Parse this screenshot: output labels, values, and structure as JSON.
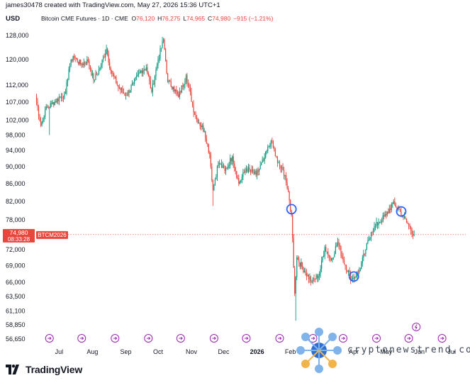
{
  "header": {
    "credit": "james30478 created with TradingView.com, May 27, 2026 15:36 UTC+1",
    "currency": "USD",
    "symbol_title": "Bitcoin CME Futures · 1D · CME",
    "ohlc": [
      {
        "key": "O",
        "value": "76,120"
      },
      {
        "key": "H",
        "value": "76,275"
      },
      {
        "key": "L",
        "value": "74,965"
      },
      {
        "key": "C",
        "value": "74,980"
      },
      {
        "key": "",
        "value": "−915 (−1.21%)"
      }
    ]
  },
  "price_tag": {
    "price": "74,980",
    "countdown": "08:33:28",
    "ticker": "BTCM2026",
    "color": "#e8453c"
  },
  "colors": {
    "up": "#089981",
    "down": "#e8453c",
    "marker": "#2962ff",
    "event": "#9c27b0"
  },
  "branding": {
    "logo_icon": "tradingview-logo-icon",
    "logo_text": "TradingView"
  },
  "watermark": {
    "icon": "cryptonewstrend-logo-icon",
    "text": "cryptonewstrend.com"
  },
  "chart_data": {
    "type": "candlestick",
    "title": "Bitcoin CME Futures · 1D · CME",
    "ylabel": "USD",
    "y_scale": "log",
    "ylim": [
      56000,
      130500
    ],
    "y_ticks": [
      "128,000",
      "120,000",
      "112,000",
      "107,000",
      "102,000",
      "98,000",
      "94,000",
      "90,000",
      "86,000",
      "82,000",
      "78,000",
      "72,000",
      "69,000",
      "66,000",
      "63,500",
      "61,100",
      "58,850",
      "56,650"
    ],
    "x_ticks": [
      "Jul",
      "Aug",
      "Sep",
      "Oct",
      "Nov",
      "Dec",
      "2026",
      "Feb",
      "Mar",
      "Apr",
      "May",
      "Jun",
      "Jul"
    ],
    "x_range": [
      "2025-06-09",
      "2026-07-14"
    ],
    "anchors": [
      {
        "date": "2025-06-09",
        "close": 109000
      },
      {
        "date": "2025-06-14",
        "close": 100500
      },
      {
        "date": "2025-06-18",
        "close": 104800
      },
      {
        "date": "2025-06-24",
        "close": 106500
      },
      {
        "date": "2025-07-01",
        "close": 108200
      },
      {
        "date": "2025-07-07",
        "close": 109500
      },
      {
        "date": "2025-07-10",
        "close": 117000
      },
      {
        "date": "2025-07-14",
        "close": 121200
      },
      {
        "date": "2025-07-21",
        "close": 118500
      },
      {
        "date": "2025-07-28",
        "close": 119600
      },
      {
        "date": "2025-08-02",
        "close": 113500
      },
      {
        "date": "2025-08-08",
        "close": 117500
      },
      {
        "date": "2025-08-14",
        "close": 123500
      },
      {
        "date": "2025-08-18",
        "close": 116500
      },
      {
        "date": "2025-08-25",
        "close": 111500
      },
      {
        "date": "2025-09-01",
        "close": 109000
      },
      {
        "date": "2025-09-08",
        "close": 112500
      },
      {
        "date": "2025-09-15",
        "close": 116500
      },
      {
        "date": "2025-09-20",
        "close": 117500
      },
      {
        "date": "2025-09-25",
        "close": 110000
      },
      {
        "date": "2025-10-01",
        "close": 120000
      },
      {
        "date": "2025-10-06",
        "close": 126500
      },
      {
        "date": "2025-10-10",
        "close": 113000
      },
      {
        "date": "2025-10-15",
        "close": 111500
      },
      {
        "date": "2025-10-20",
        "close": 108500
      },
      {
        "date": "2025-10-27",
        "close": 115000
      },
      {
        "date": "2025-11-04",
        "close": 103500
      },
      {
        "date": "2025-11-13",
        "close": 99000
      },
      {
        "date": "2025-11-18",
        "close": 93000
      },
      {
        "date": "2025-11-21",
        "close": 84500
      },
      {
        "date": "2025-11-26",
        "close": 91000
      },
      {
        "date": "2025-12-02",
        "close": 89000
      },
      {
        "date": "2025-12-09",
        "close": 92500
      },
      {
        "date": "2025-12-15",
        "close": 86000
      },
      {
        "date": "2025-12-22",
        "close": 89500
      },
      {
        "date": "2025-12-31",
        "close": 88000
      },
      {
        "date": "2026-01-07",
        "close": 91500
      },
      {
        "date": "2026-01-14",
        "close": 96500
      },
      {
        "date": "2026-01-20",
        "close": 91000
      },
      {
        "date": "2026-01-27",
        "close": 88000
      },
      {
        "date": "2026-02-02",
        "close": 79000
      },
      {
        "date": "2026-02-05",
        "close": 64000
      },
      {
        "date": "2026-02-07",
        "close": 70500
      },
      {
        "date": "2026-02-14",
        "close": 68000
      },
      {
        "date": "2026-02-21",
        "close": 66000
      },
      {
        "date": "2026-02-28",
        "close": 67500
      },
      {
        "date": "2026-03-05",
        "close": 72500
      },
      {
        "date": "2026-03-11",
        "close": 70000
      },
      {
        "date": "2026-03-17",
        "close": 73500
      },
      {
        "date": "2026-03-22",
        "close": 70000
      },
      {
        "date": "2026-03-30",
        "close": 66500
      },
      {
        "date": "2026-04-06",
        "close": 68000
      },
      {
        "date": "2026-04-12",
        "close": 72000
      },
      {
        "date": "2026-04-17",
        "close": 75500
      },
      {
        "date": "2026-04-24",
        "close": 77500
      },
      {
        "date": "2026-05-01",
        "close": 79000
      },
      {
        "date": "2026-05-07",
        "close": 81500
      },
      {
        "date": "2026-05-12",
        "close": 80500
      },
      {
        "date": "2026-05-16",
        "close": 79000
      },
      {
        "date": "2026-05-20",
        "close": 77500
      },
      {
        "date": "2026-05-27",
        "close": 74980
      }
    ],
    "extreme_lows": [
      {
        "date": "2025-06-22",
        "low": 98000
      },
      {
        "date": "2025-11-21",
        "low": 81000
      },
      {
        "date": "2026-02-06",
        "low": 59500
      }
    ],
    "markers": [
      {
        "date": "2026-02-02",
        "price": 80300
      },
      {
        "date": "2026-04-01",
        "price": 67000
      },
      {
        "date": "2026-05-15",
        "price": 79800
      }
    ],
    "last_price": 74980,
    "event_count": 13
  }
}
